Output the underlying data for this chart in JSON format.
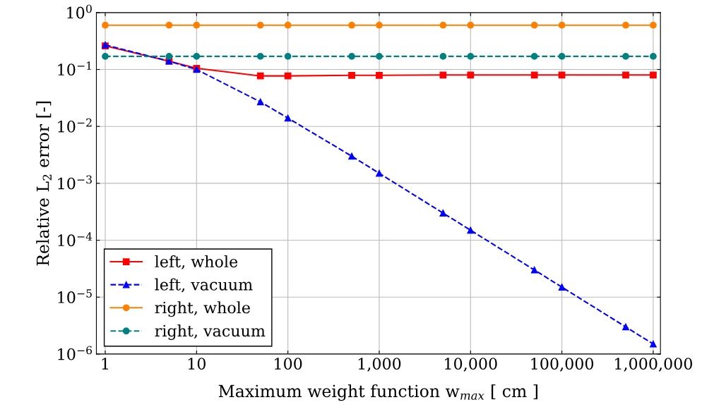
{
  "chart_data": {
    "type": "line",
    "xlabel": "Maximum weight function w$_{max}$ [ cm ]",
    "ylabel": "Relative L$_{2}$ error [-]",
    "x": [
      1,
      5,
      10,
      50,
      100,
      500,
      1000,
      5000,
      10000,
      50000,
      100000,
      500000,
      1000000
    ],
    "series": [
      {
        "name": "left, whole",
        "color": "#ff0000",
        "marker": "square",
        "line_style": "solid",
        "values": [
          0.26,
          0.14,
          0.105,
          0.077,
          0.077,
          0.079,
          0.079,
          0.08,
          0.08,
          0.08,
          0.08,
          0.08,
          0.08
        ]
      },
      {
        "name": "left, vacuum",
        "color": "#0000ff",
        "marker": "triangle",
        "line_style": "dashed",
        "values": [
          0.27,
          0.14,
          0.1,
          0.027,
          0.014,
          0.003,
          0.0015,
          0.0003,
          0.00015,
          3e-05,
          1.5e-05,
          3e-06,
          1.5e-06
        ]
      },
      {
        "name": "right, whole",
        "color": "#ff8000",
        "marker": "circle",
        "line_style": "solid",
        "values": [
          0.6,
          0.6,
          0.6,
          0.6,
          0.6,
          0.6,
          0.6,
          0.6,
          0.6,
          0.6,
          0.6,
          0.6,
          0.6
        ]
      },
      {
        "name": "right, vacuum",
        "color": "#008080",
        "marker": "circle",
        "line_style": "dashed",
        "values": [
          0.17,
          0.17,
          0.17,
          0.17,
          0.17,
          0.17,
          0.17,
          0.17,
          0.17,
          0.17,
          0.17,
          0.17,
          0.17
        ]
      }
    ],
    "log": "xy",
    "xlim": [
      0.8,
      1200000
    ],
    "ylim": [
      1e-06,
      1
    ],
    "xticks": [
      1,
      10,
      100,
      {
        "value": 1000,
        "label": "1,000"
      },
      {
        "value": 10000,
        "label": "10,000"
      },
      {
        "value": 100000,
        "label": "100,000"
      },
      {
        "value": 1000000,
        "label": "1,000,000"
      }
    ],
    "yticks": [
      {
        "value": 1e-06,
        "label": "10$^{−6}$"
      },
      {
        "value": 1e-05,
        "label": "10$^{−5}$"
      },
      {
        "value": 0.0001,
        "label": "10$^{−4}$"
      },
      {
        "value": 0.001,
        "label": "10$^{−3}$"
      },
      {
        "value": 0.01,
        "label": "10$^{−2}$"
      },
      {
        "value": 0.1,
        "label": "10$^{−1}$"
      },
      {
        "value": 1,
        "label": "10$^{0}$"
      }
    ],
    "grid": true,
    "legend": "bottom left"
  }
}
